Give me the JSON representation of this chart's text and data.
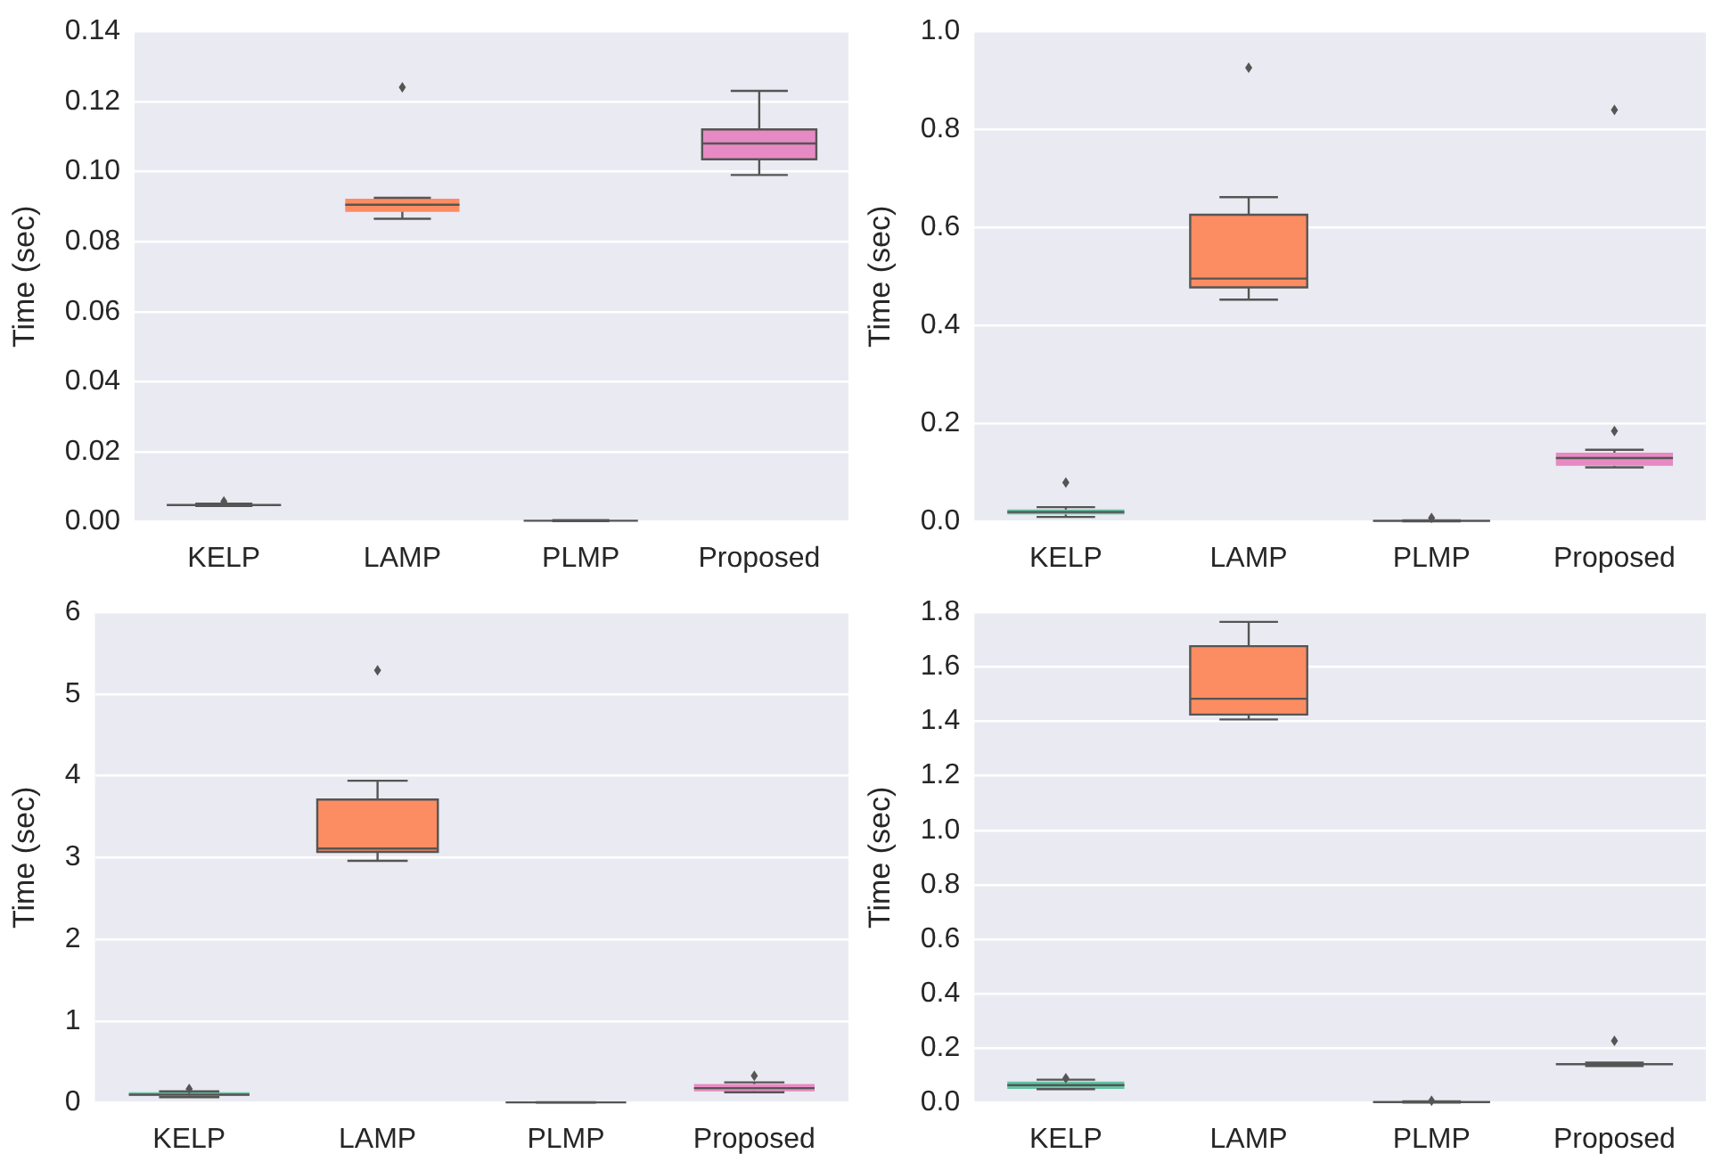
{
  "chart_data": [
    {
      "type": "box",
      "ylabel": "Time (sec)",
      "categories": [
        "KELP",
        "LAMP",
        "PLMP",
        "Proposed"
      ],
      "colors": [
        "#66c2a5",
        "#fc8d62",
        "#8da0cb",
        "#e78ac3"
      ],
      "ylim": [
        0,
        0.14
      ],
      "yticks": [
        {
          "value": 0,
          "label": "0.00"
        },
        {
          "value": 0.02,
          "label": "0.02"
        },
        {
          "value": 0.04,
          "label": "0.04"
        },
        {
          "value": 0.06,
          "label": "0.06"
        },
        {
          "value": 0.08,
          "label": "0.08"
        },
        {
          "value": 0.1,
          "label": "0.10"
        },
        {
          "value": 0.12,
          "label": "0.12"
        },
        {
          "value": 0.14,
          "label": "0.14"
        }
      ],
      "grid": "y",
      "boxes": [
        {
          "low": 0.0045,
          "q1": 0.0047,
          "median": 0.0048,
          "q3": 0.005,
          "high": 0.0052,
          "outliers": [
            0.0058
          ]
        },
        {
          "low": 0.0865,
          "q1": 0.0885,
          "median": 0.0905,
          "q3": 0.0922,
          "high": 0.0925,
          "outliers": [
            0.124
          ]
        },
        {
          "low": 0.0002,
          "q1": 0.0003,
          "median": 0.0003,
          "q3": 0.0004,
          "high": 0.0005
        },
        {
          "low": 0.099,
          "q1": 0.1035,
          "median": 0.108,
          "q3": 0.112,
          "high": 0.123
        }
      ]
    },
    {
      "type": "box",
      "ylabel": "Time (sec)",
      "categories": [
        "KELP",
        "LAMP",
        "PLMP",
        "Proposed"
      ],
      "colors": [
        "#66c2a5",
        "#fc8d62",
        "#8da0cb",
        "#e78ac3"
      ],
      "ylim": [
        0,
        1.0
      ],
      "yticks": [
        {
          "value": 0,
          "label": "0.0"
        },
        0.2,
        0.4,
        0.6,
        0.8,
        {
          "value": 1,
          "label": "1.0"
        }
      ],
      "grid": "y",
      "boxes": [
        {
          "low": 0.01,
          "q1": 0.015,
          "median": 0.02,
          "q3": 0.025,
          "high": 0.03,
          "outliers": [
            0.08
          ]
        },
        {
          "low": 0.453,
          "q1": 0.478,
          "median": 0.496,
          "q3": 0.626,
          "high": 0.662,
          "outliers": [
            0.926
          ]
        },
        {
          "low": 0.001,
          "q1": 0.001,
          "median": 0.002,
          "q3": 0.002,
          "high": 0.003,
          "outliers": [
            0.008
          ]
        },
        {
          "low": 0.111,
          "q1": 0.114,
          "median": 0.13,
          "q3": 0.141,
          "high": 0.147,
          "outliers": [
            0.185,
            0.84
          ]
        }
      ]
    },
    {
      "type": "box",
      "ylabel": "Time (sec)",
      "categories": [
        "KELP",
        "LAMP",
        "PLMP",
        "Proposed"
      ],
      "colors": [
        "#66c2a5",
        "#fc8d62",
        "#8da0cb",
        "#e78ac3"
      ],
      "ylim": [
        0,
        6
      ],
      "yticks": [
        0,
        1,
        2,
        3,
        4,
        5,
        6
      ],
      "grid": "y",
      "boxes": [
        {
          "low": 0.07,
          "q1": 0.087,
          "median": 0.1,
          "q3": 0.13,
          "high": 0.14,
          "outliers": [
            0.17
          ]
        },
        {
          "low": 2.96,
          "q1": 3.07,
          "median": 3.11,
          "q3": 3.71,
          "high": 3.94,
          "outliers": [
            5.29
          ]
        },
        {
          "low": 0.002,
          "q1": 0.003,
          "median": 0.005,
          "q3": 0.006,
          "high": 0.008
        },
        {
          "low": 0.13,
          "q1": 0.14,
          "median": 0.18,
          "q3": 0.23,
          "high": 0.25,
          "outliers": [
            0.33
          ]
        }
      ]
    },
    {
      "type": "box",
      "ylabel": "Time (sec)",
      "categories": [
        "KELP",
        "LAMP",
        "PLMP",
        "Proposed"
      ],
      "colors": [
        "#66c2a5",
        "#fc8d62",
        "#8da0cb",
        "#e78ac3"
      ],
      "ylim": [
        0,
        1.8
      ],
      "yticks": [
        {
          "value": 0,
          "label": "0.0"
        },
        0.2,
        0.4,
        0.6,
        0.8,
        {
          "value": 1,
          "label": "1.0"
        },
        1.2,
        1.4,
        1.6,
        1.8
      ],
      "grid": "y",
      "boxes": [
        {
          "low": 0.05,
          "q1": 0.051,
          "median": 0.065,
          "q3": 0.078,
          "high": 0.085,
          "outliers": [
            0.09
          ]
        },
        {
          "low": 1.407,
          "q1": 1.425,
          "median": 1.483,
          "q3": 1.676,
          "high": 1.765
        },
        {
          "low": 0.001,
          "q1": 0.002,
          "median": 0.003,
          "q3": 0.004,
          "high": 0.005,
          "outliers": [
            0.008
          ]
        },
        {
          "low": 0.135,
          "q1": 0.14,
          "median": 0.142,
          "q3": 0.145,
          "high": 0.148,
          "outliers": [
            0.228
          ]
        }
      ]
    }
  ]
}
